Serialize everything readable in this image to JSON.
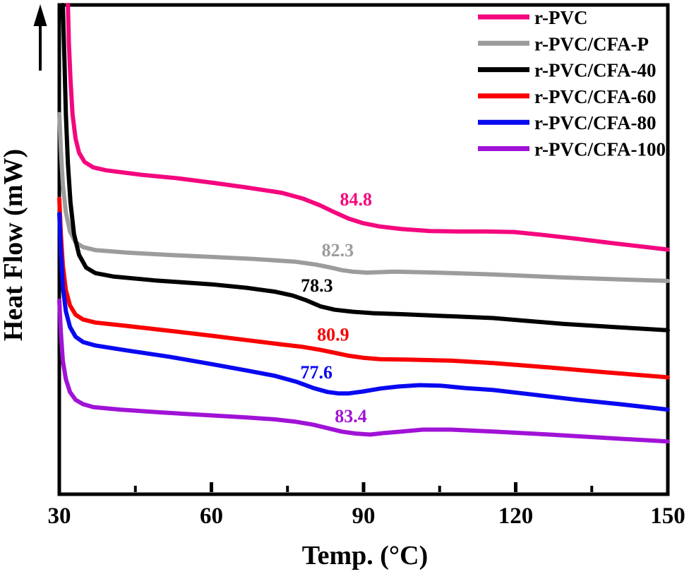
{
  "figure": {
    "background": "#ffffff",
    "axis_color": "#000000",
    "exo_arrow": "up"
  },
  "chart_data": {
    "type": "line",
    "title": "",
    "xlabel": "Temp. (°C)",
    "ylabel": "Heat Flow (mW)",
    "xlim": [
      30,
      150
    ],
    "x_ticks": [
      30,
      60,
      90,
      120,
      150
    ],
    "x_minor_ticks": [
      45,
      75,
      105,
      135
    ],
    "ylim": [
      0,
      100
    ],
    "y_axis_note": "no numeric y scale shown; arbitrary heat-flow units, up arrow on axis",
    "grid": false,
    "legend_position": "top-right-inside",
    "series": [
      {
        "name": "r-PVC",
        "color": "#F4077E",
        "tg": 84.8,
        "points": [
          [
            31.7,
            100
          ],
          [
            31.9,
            92.1
          ],
          [
            32.2,
            84.9
          ],
          [
            32.6,
            77.7
          ],
          [
            33.2,
            72.7
          ],
          [
            33.9,
            69.8
          ],
          [
            35,
            67.9
          ],
          [
            36.7,
            66.8
          ],
          [
            39.2,
            66.2
          ],
          [
            46.1,
            65.3
          ],
          [
            53.1,
            64.6
          ],
          [
            60,
            63.7
          ],
          [
            66.9,
            62.7
          ],
          [
            73.9,
            61.6
          ],
          [
            78.1,
            60.4
          ],
          [
            81.5,
            59
          ],
          [
            84.3,
            57.6
          ],
          [
            87.1,
            56.3
          ],
          [
            89.9,
            55.4
          ],
          [
            93.3,
            54.7
          ],
          [
            97.5,
            54.2
          ],
          [
            103.1,
            53.8
          ],
          [
            108.6,
            53.7
          ],
          [
            114.2,
            53.7
          ],
          [
            119.7,
            53.6
          ],
          [
            125.3,
            53
          ],
          [
            132.2,
            52.2
          ],
          [
            139.2,
            51.3
          ],
          [
            150,
            50
          ]
        ]
      },
      {
        "name": "r-PVC/CFA-P",
        "color": "#9C9C9C",
        "tg": 82.3,
        "points": [
          [
            30,
            77.7
          ],
          [
            30.3,
            70.5
          ],
          [
            30.7,
            63.3
          ],
          [
            31.3,
            57.6
          ],
          [
            32.1,
            53.7
          ],
          [
            33.2,
            51.5
          ],
          [
            34.7,
            50.5
          ],
          [
            37.1,
            49.9
          ],
          [
            43.3,
            49.4
          ],
          [
            51.7,
            48.9
          ],
          [
            60,
            48.5
          ],
          [
            68.3,
            48.1
          ],
          [
            76.7,
            47.5
          ],
          [
            80.8,
            46.9
          ],
          [
            83.6,
            46.3
          ],
          [
            85.7,
            45.8
          ],
          [
            87.8,
            45.5
          ],
          [
            90.6,
            45.3
          ],
          [
            96.1,
            45.5
          ],
          [
            104.4,
            45.3
          ],
          [
            115.6,
            44.9
          ],
          [
            129.4,
            44.3
          ],
          [
            140.6,
            43.9
          ],
          [
            150,
            43.6
          ]
        ]
      },
      {
        "name": "r-PVC/CFA-40",
        "color": "#000000",
        "tg": 78.3,
        "points": [
          [
            30.7,
            100
          ],
          [
            31,
            89.2
          ],
          [
            31.3,
            77.7
          ],
          [
            31.7,
            67.6
          ],
          [
            32.2,
            59.7
          ],
          [
            32.9,
            53.2
          ],
          [
            33.9,
            48.9
          ],
          [
            35.3,
            46.3
          ],
          [
            37.1,
            45.2
          ],
          [
            40.6,
            44.5
          ],
          [
            48.9,
            43.7
          ],
          [
            60,
            42.9
          ],
          [
            66.9,
            42.2
          ],
          [
            72.5,
            41.4
          ],
          [
            76,
            40.6
          ],
          [
            78.8,
            39.6
          ],
          [
            81.5,
            38.4
          ],
          [
            84.3,
            37.7
          ],
          [
            87.8,
            37.3
          ],
          [
            91.9,
            37
          ],
          [
            97.5,
            36.8
          ],
          [
            104.4,
            36.5
          ],
          [
            115.6,
            36
          ],
          [
            129.4,
            34.8
          ],
          [
            140.6,
            34.1
          ],
          [
            150,
            33.5
          ]
        ]
      },
      {
        "name": "r-PVC/CFA-60",
        "color": "#F80202",
        "tg": 80.9,
        "points": [
          [
            30,
            60.4
          ],
          [
            30.3,
            53.2
          ],
          [
            30.7,
            46.8
          ],
          [
            31.3,
            41.7
          ],
          [
            32.1,
            38.6
          ],
          [
            33.2,
            36.7
          ],
          [
            34.7,
            35.7
          ],
          [
            37.1,
            35.1
          ],
          [
            43.3,
            34.4
          ],
          [
            51.7,
            33.4
          ],
          [
            60,
            32.4
          ],
          [
            66.9,
            31.5
          ],
          [
            73.9,
            30.6
          ],
          [
            78.1,
            30.1
          ],
          [
            81.5,
            29.5
          ],
          [
            84.3,
            28.9
          ],
          [
            87.1,
            28.3
          ],
          [
            89.9,
            27.9
          ],
          [
            93.3,
            27.6
          ],
          [
            98.9,
            27.5
          ],
          [
            107.2,
            27.3
          ],
          [
            115.6,
            26.8
          ],
          [
            126.7,
            25.9
          ],
          [
            137.8,
            24.9
          ],
          [
            150,
            23.9
          ]
        ]
      },
      {
        "name": "r-PVC/CFA-80",
        "color": "#0909F0",
        "tg": 77.6,
        "points": [
          [
            30,
            57.3
          ],
          [
            30.3,
            49.6
          ],
          [
            30.7,
            42.4
          ],
          [
            31.3,
            37.4
          ],
          [
            32.1,
            34.2
          ],
          [
            33.2,
            32.2
          ],
          [
            34.7,
            31.1
          ],
          [
            37.1,
            30.4
          ],
          [
            43.3,
            29.4
          ],
          [
            51.7,
            28.1
          ],
          [
            60,
            26.6
          ],
          [
            66.9,
            25.3
          ],
          [
            72.5,
            24.2
          ],
          [
            76.7,
            23
          ],
          [
            80.1,
            21.7
          ],
          [
            82.9,
            20.9
          ],
          [
            85,
            20.6
          ],
          [
            87.1,
            20.6
          ],
          [
            89.9,
            21
          ],
          [
            93.3,
            21.6
          ],
          [
            96.8,
            22
          ],
          [
            101,
            22.3
          ],
          [
            105.1,
            22.2
          ],
          [
            110,
            21.7
          ],
          [
            115.6,
            21.3
          ],
          [
            123.9,
            20.3
          ],
          [
            132.2,
            19.3
          ],
          [
            140.6,
            18.4
          ],
          [
            150,
            17.3
          ]
        ]
      },
      {
        "name": "r-PVC/CFA-100",
        "color": "#A013D6",
        "tg": 83.4,
        "points": [
          [
            30,
            39.6
          ],
          [
            30.3,
            33.1
          ],
          [
            30.7,
            27.3
          ],
          [
            31.3,
            23.5
          ],
          [
            32.1,
            20.9
          ],
          [
            33.2,
            19.3
          ],
          [
            34.7,
            18.4
          ],
          [
            36.7,
            17.8
          ],
          [
            41.9,
            17.3
          ],
          [
            50.3,
            16.7
          ],
          [
            60,
            16.1
          ],
          [
            66.9,
            15.7
          ],
          [
            72.5,
            15.3
          ],
          [
            76.7,
            14.8
          ],
          [
            80.1,
            14.2
          ],
          [
            82.9,
            13.5
          ],
          [
            85.7,
            12.8
          ],
          [
            88.5,
            12.4
          ],
          [
            91.3,
            12.2
          ],
          [
            94,
            12.5
          ],
          [
            97.5,
            12.8
          ],
          [
            101.7,
            13.2
          ],
          [
            107.2,
            13.2
          ],
          [
            115.6,
            12.8
          ],
          [
            126.7,
            12.2
          ],
          [
            137.8,
            11.5
          ],
          [
            150,
            10.8
          ]
        ]
      }
    ],
    "annotations": [
      {
        "text": "84.8",
        "color": "#F4077E",
        "x": 88.5,
        "y": 60.3
      },
      {
        "text": "82.3",
        "color": "#9C9C9C",
        "x": 84.9,
        "y": 49.9
      },
      {
        "text": "78.3",
        "color": "#000000",
        "x": 80.8,
        "y": 42.7
      },
      {
        "text": "80.9",
        "color": "#F80202",
        "x": 84.0,
        "y": 32.7
      },
      {
        "text": "77.6",
        "color": "#0909F0",
        "x": 80.7,
        "y": 25.0
      },
      {
        "text": "83.4",
        "color": "#A013D6",
        "x": 87.5,
        "y": 16.0
      }
    ]
  }
}
